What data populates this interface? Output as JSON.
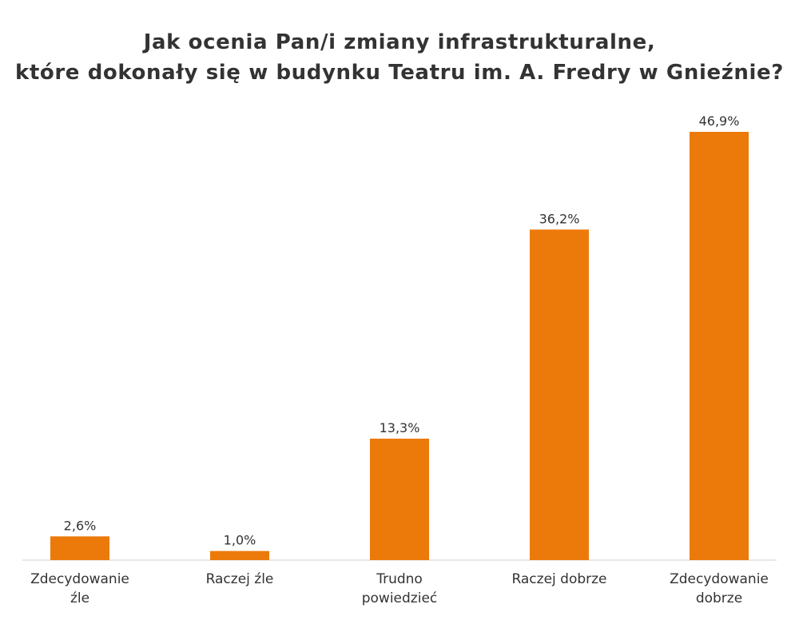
{
  "chart_data": {
    "type": "bar",
    "title_lines": [
      "Jak ocenia Pan/i zmiany infrastrukturalne,",
      "które dokonały się w budynku Teatru im. A. Fredry w Gnieźnie?"
    ],
    "categories": [
      [
        "Zdecydowanie",
        "źle"
      ],
      [
        "Raczej źle"
      ],
      [
        "Trudno",
        "powiedzieć"
      ],
      [
        "Raczej dobrze"
      ],
      [
        "Zdecydowanie",
        "dobrze"
      ]
    ],
    "values": [
      2.6,
      1.0,
      13.3,
      36.2,
      46.9
    ],
    "value_labels": [
      "2,6%",
      "1,0%",
      "13,3%",
      "36,2%",
      "46,9%"
    ],
    "unit": "%",
    "ylim": [
      0,
      46.9
    ],
    "grid": false,
    "legend": "none",
    "bar_color": "#EC7A0B",
    "baseline_color": "#D0D0D0",
    "text_color": "#333333"
  }
}
